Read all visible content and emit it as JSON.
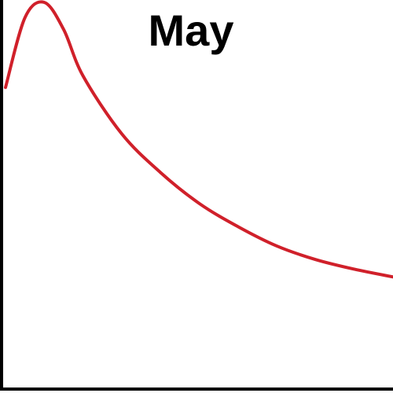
{
  "chart_data": {
    "type": "line",
    "title": "May",
    "xlabel": "",
    "ylabel": "",
    "grid": false,
    "line_color": "#d0202a",
    "axis_color": "#000000",
    "series": [
      {
        "x": [
          0,
          0.5,
          1,
          1.5,
          2,
          3,
          4,
          5,
          6,
          7,
          8,
          9,
          10
        ],
        "values": [
          0.78,
          0.96,
          1.0,
          0.93,
          0.81,
          0.66,
          0.56,
          0.48,
          0.42,
          0.37,
          0.335,
          0.31,
          0.29
        ]
      }
    ]
  }
}
